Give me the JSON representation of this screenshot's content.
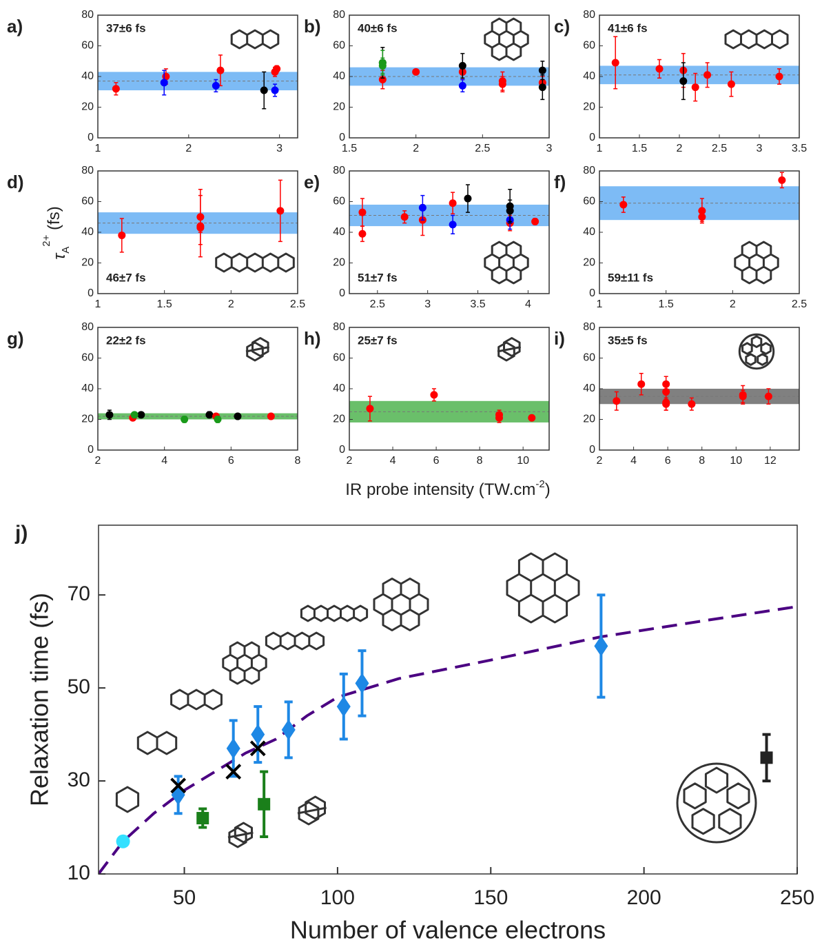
{
  "ylabel": {
    "symbol": "τ",
    "subscript": "A",
    "superscript": "2+",
    "unit": " (fs)"
  },
  "xlabel": {
    "text": "IR probe intensity (TW.cm",
    "superscript": "-2",
    "end": ")"
  },
  "chart_data": [
    {
      "type": "scatter",
      "panel_label": "a)",
      "annotation": "37±6 fs",
      "band_mean": 37,
      "band_error": 6,
      "band_color": "#7dbbf5",
      "molecule": "chain3",
      "xlim": [
        1,
        3.2
      ],
      "xticks": [
        1,
        2,
        3
      ],
      "ylim": [
        0,
        80
      ],
      "yticks": [
        0,
        20,
        40,
        60,
        80
      ],
      "series": [
        {
          "color": "#ff0000",
          "marker": "circle",
          "x": [
            1.2,
            1.75,
            2.35,
            2.95,
            2.97
          ],
          "values": [
            32,
            40,
            44,
            43,
            45
          ],
          "errors": [
            4,
            5,
            10,
            3,
            2
          ]
        },
        {
          "color": "#0000ff",
          "marker": "circle",
          "x": [
            1.73,
            2.3,
            2.95
          ],
          "values": [
            36,
            34,
            31
          ],
          "errors": [
            8,
            4,
            4
          ]
        },
        {
          "color": "#000000",
          "marker": "circle",
          "x": [
            2.83
          ],
          "values": [
            31
          ],
          "errors": [
            12
          ]
        }
      ]
    },
    {
      "type": "scatter",
      "panel_label": "b)",
      "annotation": "40±6 fs",
      "band_mean": 40,
      "band_error": 6,
      "band_color": "#7dbbf5",
      "molecule": "flower",
      "xlim": [
        1.5,
        3
      ],
      "xticks": [
        1.5,
        2,
        2.5,
        3
      ],
      "ylim": [
        0,
        80
      ],
      "yticks": [
        0,
        20,
        40,
        60,
        80
      ],
      "series": [
        {
          "color": "#ff0000",
          "marker": "circle",
          "x": [
            1.75,
            2.0,
            2.35,
            2.65,
            2.65,
            2.95
          ],
          "values": [
            38,
            43,
            43,
            37,
            35,
            36
          ],
          "errors": [
            6,
            null,
            5,
            6,
            5,
            4
          ]
        },
        {
          "color": "#0000ff",
          "marker": "circle",
          "x": [
            2.35
          ],
          "values": [
            34
          ],
          "errors": [
            4
          ]
        },
        {
          "color": "#000000",
          "marker": "circle",
          "x": [
            1.75,
            2.35,
            2.95,
            2.95
          ],
          "values": [
            49,
            47,
            44,
            33
          ],
          "errors": [
            10,
            8,
            6,
            8
          ]
        },
        {
          "color": "#1a9a1a",
          "marker": "circle",
          "x": [
            1.75,
            1.75
          ],
          "values": [
            49,
            47
          ],
          "errors": [
            8,
            5
          ]
        }
      ]
    },
    {
      "type": "scatter",
      "panel_label": "c)",
      "annotation": "41±6 fs",
      "band_mean": 41,
      "band_error": 6,
      "band_color": "#7dbbf5",
      "molecule": "chain4",
      "xlim": [
        1,
        3.5
      ],
      "xticks": [
        1,
        1.5,
        2,
        2.5,
        3,
        3.5
      ],
      "ylim": [
        0,
        80
      ],
      "yticks": [
        0,
        20,
        40,
        60,
        80
      ],
      "series": [
        {
          "color": "#ff0000",
          "marker": "circle",
          "x": [
            1.2,
            1.75,
            2.05,
            2.2,
            2.35,
            2.65,
            3.25
          ],
          "values": [
            49,
            45,
            44,
            33,
            41,
            35,
            40
          ],
          "errors": [
            17,
            6,
            11,
            9,
            8,
            8,
            5
          ]
        },
        {
          "color": "#000000",
          "marker": "circle",
          "x": [
            2.05
          ],
          "values": [
            37
          ],
          "errors": [
            12
          ]
        }
      ]
    },
    {
      "type": "scatter",
      "panel_label": "d)",
      "annotation": "46±7 fs",
      "band_mean": 46,
      "band_error": 7,
      "band_color": "#7dbbf5",
      "molecule": "chain5",
      "xlim": [
        1,
        2.5
      ],
      "xticks": [
        1,
        1.5,
        2,
        2.5
      ],
      "ylim": [
        0,
        80
      ],
      "yticks": [
        0,
        20,
        40,
        60,
        80
      ],
      "series": [
        {
          "color": "#ff0000",
          "marker": "circle",
          "x": [
            1.18,
            1.77,
            1.77,
            1.77,
            2.37
          ],
          "values": [
            38,
            50,
            44,
            43,
            54
          ],
          "errors": [
            11,
            18,
            20,
            3,
            20
          ]
        }
      ]
    },
    {
      "type": "scatter",
      "panel_label": "e)",
      "annotation": "51±7 fs",
      "band_mean": 51,
      "band_error": 7,
      "band_color": "#7dbbf5",
      "molecule": "flower",
      "xlim": [
        2.22,
        4.21
      ],
      "xticks": [
        2.5,
        3,
        3.5,
        4
      ],
      "ylim": [
        0,
        80
      ],
      "yticks": [
        0,
        20,
        40,
        60,
        80
      ],
      "series": [
        {
          "color": "#ff0000",
          "marker": "circle",
          "x": [
            2.35,
            2.35,
            2.77,
            2.95,
            3.25,
            3.82,
            4.07
          ],
          "values": [
            53,
            39,
            50,
            48,
            59,
            46,
            47
          ],
          "errors": [
            9,
            5,
            4,
            10,
            7,
            5,
            2
          ]
        },
        {
          "color": "#0000ff",
          "marker": "circle",
          "x": [
            2.95,
            3.25,
            3.82
          ],
          "values": [
            56,
            45,
            48
          ],
          "errors": [
            8,
            6,
            6
          ]
        },
        {
          "color": "#000000",
          "marker": "circle",
          "x": [
            3.4,
            3.82,
            3.82
          ],
          "values": [
            62,
            57,
            54
          ],
          "errors": [
            9,
            11,
            7
          ]
        }
      ]
    },
    {
      "type": "scatter",
      "panel_label": "f)",
      "annotation": "59±11 fs",
      "band_mean": 59,
      "band_error": 11,
      "band_color": "#7dbbf5",
      "molecule": "flower",
      "xlim": [
        1,
        2.5
      ],
      "xticks": [
        1,
        1.5,
        2,
        2.5
      ],
      "ylim": [
        0,
        80
      ],
      "yticks": [
        0,
        20,
        40,
        60,
        80
      ],
      "series": [
        {
          "color": "#ff0000",
          "marker": "circle",
          "x": [
            1.18,
            1.77,
            1.77,
            2.37
          ],
          "values": [
            58,
            54,
            50,
            74
          ],
          "errors": [
            5,
            8,
            3,
            5
          ]
        }
      ]
    },
    {
      "type": "scatter",
      "panel_label": "g)",
      "annotation": "22±2 fs",
      "band_mean": 22,
      "band_error": 2,
      "band_color": "#6abf6a",
      "molecule": "cage",
      "xlim": [
        2,
        8
      ],
      "xticks": [
        2,
        4,
        6,
        8
      ],
      "ylim": [
        0,
        80
      ],
      "yticks": [
        0,
        20,
        40,
        60,
        80
      ],
      "series": [
        {
          "color": "#000000",
          "marker": "circle",
          "x": [
            2.35,
            3.3,
            5.35,
            6.2
          ],
          "values": [
            23,
            23,
            23,
            22
          ],
          "errors": [
            3,
            null,
            2,
            null
          ]
        },
        {
          "color": "#ff0000",
          "marker": "circle",
          "x": [
            3.05,
            5.55,
            7.2
          ],
          "values": [
            21,
            22,
            22
          ],
          "errors": [
            null,
            null,
            null
          ]
        },
        {
          "color": "#1a9a1a",
          "marker": "circle",
          "x": [
            3.1,
            4.6,
            5.6
          ],
          "values": [
            23,
            20,
            20
          ],
          "errors": [
            null,
            2,
            2
          ]
        }
      ]
    },
    {
      "type": "scatter",
      "panel_label": "h)",
      "annotation": "25±7 fs",
      "band_mean": 25,
      "band_error": 7,
      "band_color": "#6abf6a",
      "molecule": "cage",
      "xlim": [
        2,
        11.2
      ],
      "xticks": [
        2,
        4,
        6,
        8,
        10
      ],
      "ylim": [
        0,
        80
      ],
      "yticks": [
        0,
        20,
        40,
        60,
        80
      ],
      "series": [
        {
          "color": "#ff0000",
          "marker": "circle",
          "x": [
            2.95,
            5.9,
            8.9,
            8.9,
            10.4
          ],
          "values": [
            27,
            36,
            23,
            21,
            21
          ],
          "errors": [
            8,
            4,
            3,
            3,
            null
          ]
        }
      ]
    },
    {
      "type": "scatter",
      "panel_label": "i)",
      "annotation": "35±5 fs",
      "band_mean": 35,
      "band_error": 5,
      "band_color": "#808080",
      "molecule": "ball",
      "xlim": [
        2,
        13.7
      ],
      "xticks": [
        2,
        4,
        6,
        8,
        10,
        12
      ],
      "ylim": [
        0,
        80
      ],
      "yticks": [
        0,
        20,
        40,
        60,
        80
      ],
      "series": [
        {
          "color": "#ff0000",
          "marker": "circle",
          "x": [
            3,
            4.45,
            5.9,
            5.9,
            5.9,
            5.9,
            7.4,
            10.4,
            10.4,
            11.9
          ],
          "values": [
            32,
            43,
            43,
            38,
            31,
            30,
            30,
            36,
            35,
            35
          ],
          "errors": [
            6,
            7,
            5,
            5,
            5,
            4,
            4,
            6,
            4,
            5
          ]
        }
      ]
    },
    {
      "type": "scatter",
      "panel_label": "j)",
      "xlabel": "Number of valence electrons",
      "ylabel": "Relaxation time (fs)",
      "xlim": [
        22,
        250
      ],
      "xticks": [
        50,
        100,
        150,
        200,
        250
      ],
      "ylim": [
        10,
        85
      ],
      "yticks": [
        10,
        30,
        50,
        70
      ],
      "series": [
        {
          "color": "#4b0082",
          "marker": "line",
          "dash": true,
          "x": [
            22,
            30,
            40,
            50,
            60,
            70,
            80,
            90,
            100,
            120,
            150,
            186,
            220,
            250
          ],
          "values": [
            10,
            17,
            23,
            28,
            32,
            36,
            39,
            44,
            48,
            52,
            56,
            61,
            64.5,
            67.5
          ]
        },
        {
          "color": "#1e88e5",
          "marker": "diamond",
          "x": [
            48,
            66,
            74,
            84,
            102,
            108,
            186
          ],
          "values": [
            27,
            37,
            40,
            41,
            46,
            51,
            59
          ],
          "errors": [
            4,
            6,
            6,
            6,
            7,
            7,
            11
          ]
        },
        {
          "color": "#000000",
          "marker": "cross",
          "x": [
            48,
            66,
            74
          ],
          "values": [
            29,
            32,
            37
          ]
        },
        {
          "color": "#1a7f1a",
          "marker": "square",
          "x": [
            56,
            76
          ],
          "values": [
            22,
            25
          ],
          "errors": [
            2,
            7
          ]
        },
        {
          "color": "#33e0ff",
          "marker": "circle",
          "x": [
            30
          ],
          "values": [
            17
          ]
        },
        {
          "color": "#222222",
          "marker": "square",
          "x": [
            240
          ],
          "values": [
            35
          ],
          "errors": [
            5
          ]
        }
      ]
    }
  ]
}
